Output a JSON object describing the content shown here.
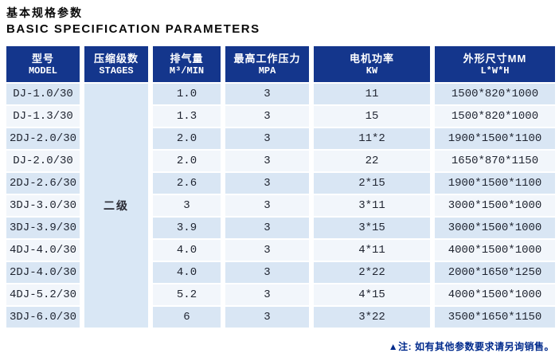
{
  "page": {
    "title_zh": "基本规格参数",
    "title_en": "BASIC SPECIFICATION PARAMETERS"
  },
  "table": {
    "columns": [
      {
        "zh": "型号",
        "en": "MODEL"
      },
      {
        "zh": "压缩级数",
        "en": "STAGES"
      },
      {
        "zh": "排气量",
        "en": "M³/MIN"
      },
      {
        "zh": "最高工作压力",
        "en": "MPA"
      },
      {
        "zh": "电机功率",
        "en": "KW"
      },
      {
        "zh": "外形尺寸MM",
        "en": "L*W*H"
      }
    ],
    "stages_value": "二级",
    "rows": [
      {
        "model": "DJ-1.0/30",
        "displacement": "1.0",
        "pressure": "3",
        "power": "11",
        "dimensions": "1500*820*1000"
      },
      {
        "model": "DJ-1.3/30",
        "displacement": "1.3",
        "pressure": "3",
        "power": "15",
        "dimensions": "1500*820*1000"
      },
      {
        "model": "2DJ-2.0/30",
        "displacement": "2.0",
        "pressure": "3",
        "power": "11*2",
        "dimensions": "1900*1500*1100"
      },
      {
        "model": "DJ-2.0/30",
        "displacement": "2.0",
        "pressure": "3",
        "power": "22",
        "dimensions": "1650*870*1150"
      },
      {
        "model": "2DJ-2.6/30",
        "displacement": "2.6",
        "pressure": "3",
        "power": "2*15",
        "dimensions": "1900*1500*1100"
      },
      {
        "model": "3DJ-3.0/30",
        "displacement": "3",
        "pressure": "3",
        "power": "3*11",
        "dimensions": "3000*1500*1000"
      },
      {
        "model": "3DJ-3.9/30",
        "displacement": "3.9",
        "pressure": "3",
        "power": "3*15",
        "dimensions": "3000*1500*1000"
      },
      {
        "model": "4DJ-4.0/30",
        "displacement": "4.0",
        "pressure": "3",
        "power": "4*11",
        "dimensions": "4000*1500*1000"
      },
      {
        "model": "2DJ-4.0/30",
        "displacement": "4.0",
        "pressure": "3",
        "power": "2*22",
        "dimensions": "2000*1650*1250"
      },
      {
        "model": "4DJ-5.2/30",
        "displacement": "5.2",
        "pressure": "3",
        "power": "4*15",
        "dimensions": "4000*1500*1000"
      },
      {
        "model": "3DJ-6.0/30",
        "displacement": "6",
        "pressure": "3",
        "power": "3*22",
        "dimensions": "3500*1650*1150"
      }
    ]
  },
  "footnote": "▲注: 如有其他参数要求请另询销售。",
  "colors": {
    "header_bg": "#14368c",
    "row_alt_blue": "#d9e6f4",
    "row_alt_white": "#f2f6fb",
    "stages_bg": "#d9e7f5",
    "note_text": "#002a8c"
  }
}
